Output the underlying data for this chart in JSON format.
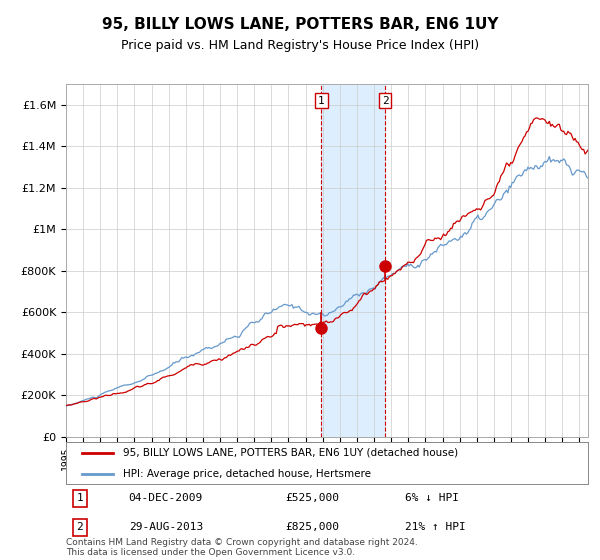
{
  "title": "95, BILLY LOWS LANE, POTTERS BAR, EN6 1UY",
  "subtitle": "Price paid vs. HM Land Registry's House Price Index (HPI)",
  "legend_line1": "95, BILLY LOWS LANE, POTTERS BAR, EN6 1UY (detached house)",
  "legend_line2": "HPI: Average price, detached house, Hertsmere",
  "transaction1_date": "04-DEC-2009",
  "transaction1_price": 525000,
  "transaction1_pct": "6% ↓ HPI",
  "transaction2_date": "29-AUG-2013",
  "transaction2_price": 825000,
  "transaction2_pct": "21% ↑ HPI",
  "footer": "Contains HM Land Registry data © Crown copyright and database right 2024.\nThis data is licensed under the Open Government Licence v3.0.",
  "hpi_color": "#6699cc",
  "price_color": "#cc0000",
  "highlight_color": "#ddeeff",
  "vline_color": "#cc0000",
  "background_color": "#ffffff",
  "grid_color": "#cccccc",
  "ylim": [
    0,
    1700000
  ],
  "year_start": 1995,
  "year_end": 2025,
  "t1_year": 2009.92,
  "t2_year": 2013.65
}
